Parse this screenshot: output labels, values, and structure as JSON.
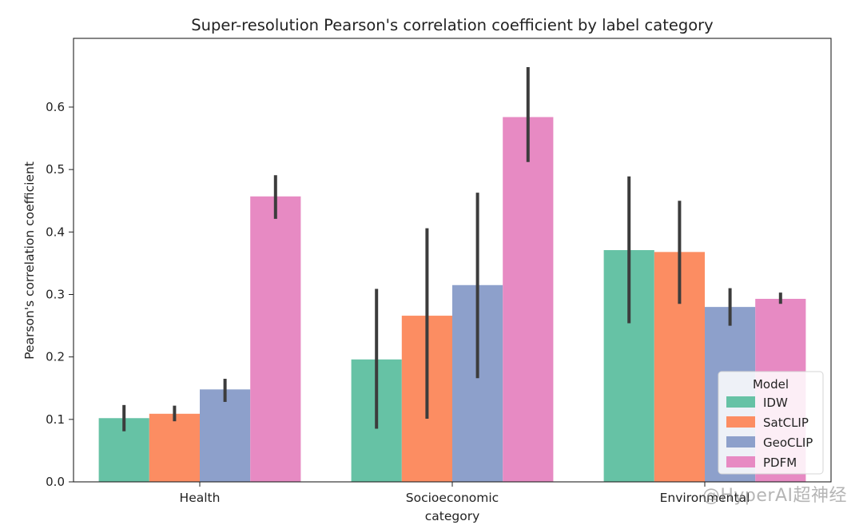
{
  "chart_data": {
    "type": "bar",
    "title": "Super-resolution Pearson's correlation coefficient by label category",
    "xlabel": "category",
    "ylabel": "Pearson's correlation coefficient",
    "categories": [
      "Health",
      "Socioeconomic",
      "Environmental"
    ],
    "ylim": [
      0,
      0.71
    ],
    "yticks": [
      0.0,
      0.1,
      0.2,
      0.3,
      0.4,
      0.5,
      0.6
    ],
    "grid": false,
    "legend": {
      "title": "Model",
      "position": "lower-right"
    },
    "series": [
      {
        "name": "IDW",
        "color": "#66c2a5",
        "values": [
          0.102,
          0.196,
          0.371
        ],
        "err_low": [
          0.081,
          0.085,
          0.254
        ],
        "err_high": [
          0.123,
          0.309,
          0.489
        ]
      },
      {
        "name": "SatCLIP",
        "color": "#fc8d62",
        "values": [
          0.109,
          0.266,
          0.368
        ],
        "err_low": [
          0.097,
          0.101,
          0.285
        ],
        "err_high": [
          0.122,
          0.406,
          0.45
        ]
      },
      {
        "name": "GeoCLIP",
        "color": "#8da0cb",
        "values": [
          0.148,
          0.315,
          0.28
        ],
        "err_low": [
          0.128,
          0.166,
          0.25
        ],
        "err_high": [
          0.165,
          0.463,
          0.31
        ]
      },
      {
        "name": "PDFM",
        "color": "#e78ac3",
        "values": [
          0.457,
          0.584,
          0.293
        ],
        "err_low": [
          0.421,
          0.512,
          0.285
        ],
        "err_high": [
          0.491,
          0.664,
          0.303
        ]
      }
    ]
  },
  "watermark": "@HyperAI超神经"
}
